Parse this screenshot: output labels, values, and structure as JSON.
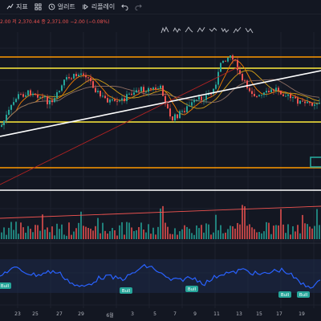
{
  "toolbar": {
    "items": [
      {
        "label": "지표",
        "icon": "indicator-icon"
      },
      {
        "label": "",
        "icon": "layout-grid-icon"
      },
      {
        "label": "얼러트",
        "icon": "alert-clock-icon"
      },
      {
        "label": "리플레이",
        "icon": "replay-icon"
      },
      {
        "label": "",
        "icon": "undo-icon"
      },
      {
        "label": "",
        "icon": "redo-icon"
      }
    ]
  },
  "ohlc_text": "2.00  저 2,370.44  종 2,371.00  −2.00 (−0.08%)",
  "colors": {
    "background": "#131722",
    "up": "#26a69a",
    "down": "#ef5350",
    "osc_line": "#2962ff"
  },
  "oscillator": {
    "badge": "Bull"
  },
  "xaxis": {
    "labels": [
      "23",
      "25",
      "27",
      "29",
      "6월",
      "3",
      "5",
      "7",
      "9",
      "11",
      "13",
      "15",
      "17",
      "19"
    ]
  }
}
